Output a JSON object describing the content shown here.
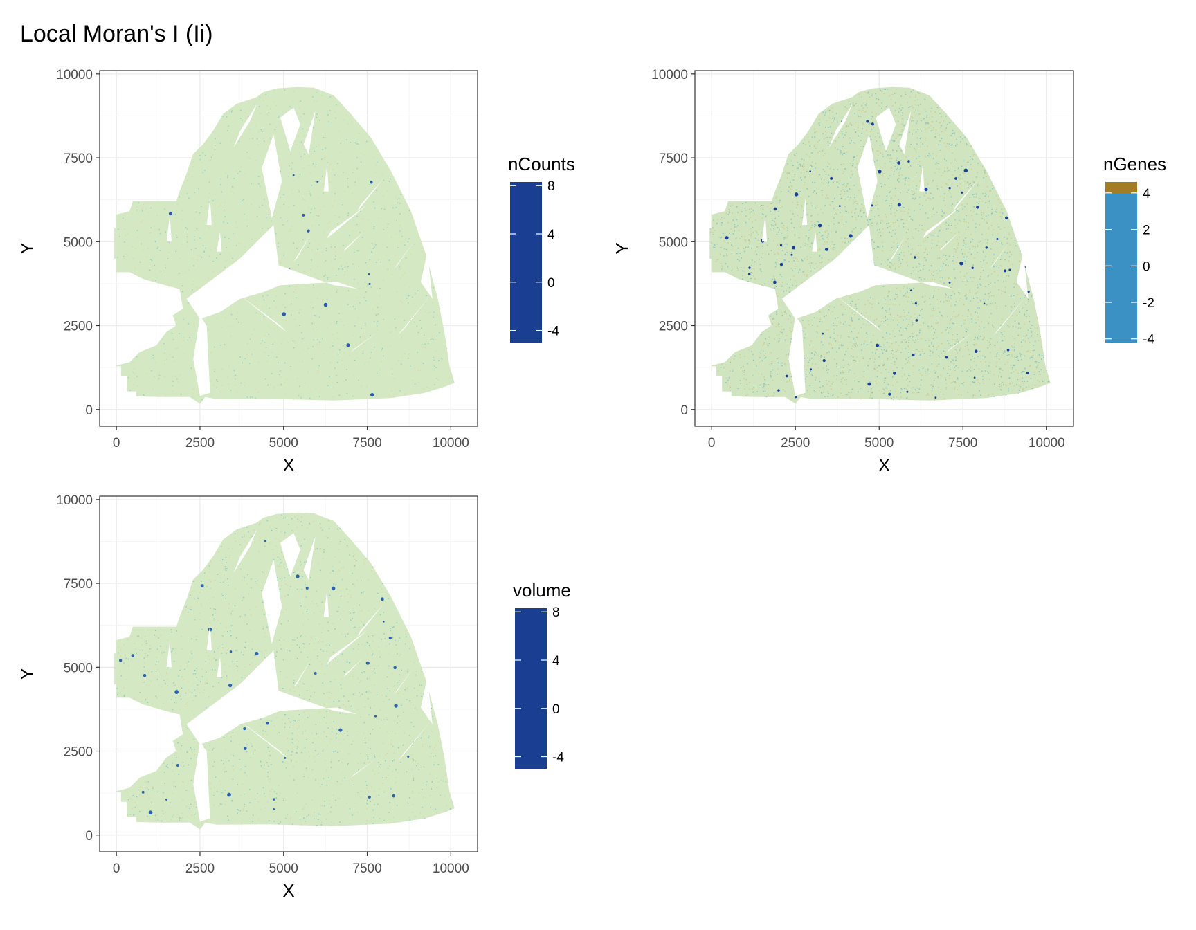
{
  "title": "Local Moran's I (Ii)",
  "chart_data": [
    {
      "type": "scatter",
      "legend_title": "nCounts",
      "xlabel": "X",
      "ylabel": "Y",
      "xlim": [
        -500,
        10800
      ],
      "ylim": [
        -500,
        10100
      ],
      "x_ticks": [
        0,
        2500,
        5000,
        7500,
        10000
      ],
      "y_ticks": [
        0,
        2500,
        5000,
        7500,
        10000
      ],
      "grid": true,
      "legend_position": "right",
      "colorbar": {
        "min": -5,
        "max": 8.3,
        "ticks": [
          -4,
          0,
          4,
          8
        ]
      },
      "colors": {
        "tissue": "#d4e8c4",
        "speckle_high": "#4cbcc8",
        "speckle_low": "#d8d498",
        "hotspot": "#2a5aa8"
      },
      "speckle_density": 0.9,
      "hotspot_count": 15
    },
    {
      "type": "scatter",
      "legend_title": "nGenes",
      "xlabel": "X",
      "ylabel": "Y",
      "xlim": [
        -500,
        10800
      ],
      "ylim": [
        -500,
        10100
      ],
      "x_ticks": [
        0,
        2500,
        5000,
        7500,
        10000
      ],
      "y_ticks": [
        0,
        2500,
        5000,
        7500,
        10000
      ],
      "grid": true,
      "legend_position": "right",
      "colorbar": {
        "min": -4.2,
        "max": 4.6,
        "ticks": [
          -4,
          -2,
          0,
          2,
          4
        ]
      },
      "colors": {
        "tissue": "#cfe4bf",
        "speckle_high": "#3aa8c4",
        "speckle_low": "#cdbd72",
        "hotspot": "#173f97"
      },
      "speckle_density": 2.6,
      "hotspot_count": 70
    },
    {
      "type": "scatter",
      "legend_title": "volume",
      "xlabel": "X",
      "ylabel": "Y",
      "xlim": [
        -500,
        10800
      ],
      "ylim": [
        -500,
        10100
      ],
      "x_ticks": [
        0,
        2500,
        5000,
        7500,
        10000
      ],
      "y_ticks": [
        0,
        2500,
        5000,
        7500,
        10000
      ],
      "grid": true,
      "legend_position": "right",
      "colorbar": {
        "min": -5,
        "max": 8.3,
        "ticks": [
          -4,
          0,
          4,
          8
        ]
      },
      "colors": {
        "tissue": "#d4e8c4",
        "speckle_high": "#3fb0c6",
        "speckle_low": "#d4cf94",
        "hotspot": "#2a62ad"
      },
      "speckle_density": 1.3,
      "hotspot_count": 40
    }
  ]
}
